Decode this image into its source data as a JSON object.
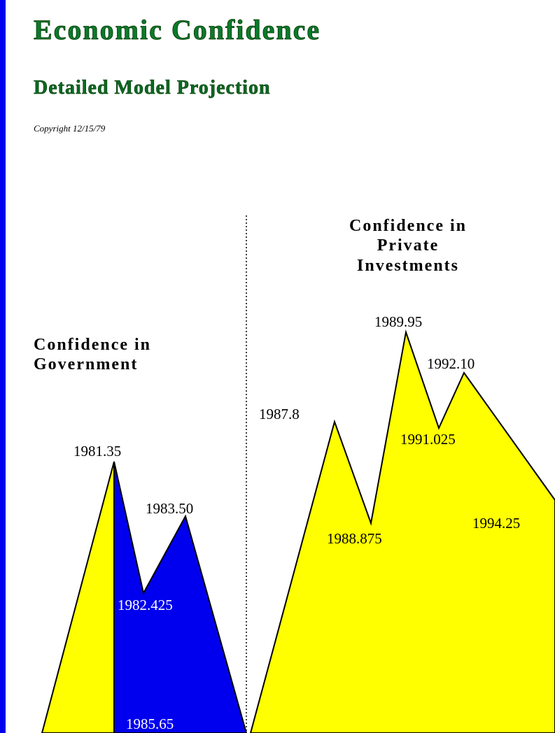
{
  "header": {
    "title": "Economic Confidence",
    "subtitle": "Detailed Model Projection",
    "copyright": "Copyright 12/15/79"
  },
  "panels": [
    {
      "label": [
        "Confidence in",
        "Government"
      ],
      "points": [
        "1981.35",
        "1982.425",
        "1983.50",
        "1985.65"
      ]
    },
    {
      "label": [
        "Confidence in",
        "Private",
        "Investments"
      ],
      "points": [
        "1987.8",
        "1988.875",
        "1989.95",
        "1991.025",
        "1992.10",
        "1994.25"
      ]
    }
  ]
}
